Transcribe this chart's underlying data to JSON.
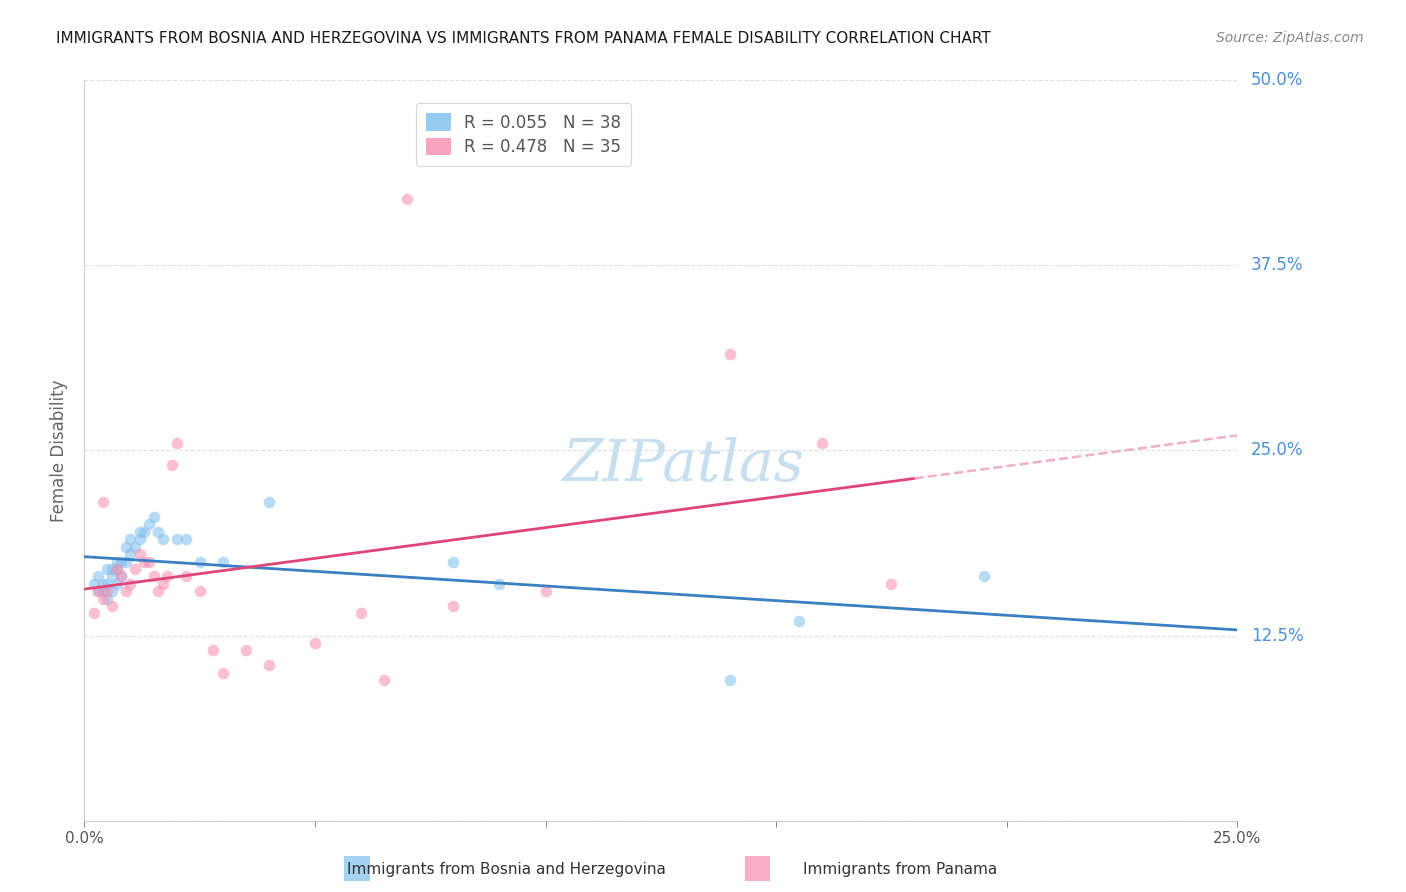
{
  "title": "IMMIGRANTS FROM BOSNIA AND HERZEGOVINA VS IMMIGRANTS FROM PANAMA FEMALE DISABILITY CORRELATION CHART",
  "source": "Source: ZipAtlas.com",
  "ylabel": "Female Disability",
  "xlim": [
    0.0,
    0.25
  ],
  "ylim": [
    0.0,
    0.5
  ],
  "x_ticks": [
    0.0,
    0.05,
    0.1,
    0.15,
    0.2,
    0.25
  ],
  "y_ticks": [
    0.0,
    0.125,
    0.25,
    0.375,
    0.5
  ],
  "legend_label1": "Immigrants from Bosnia and Herzegovina",
  "legend_label2": "Immigrants from Panama",
  "blue_R": 0.055,
  "blue_N": 38,
  "pink_R": 0.478,
  "pink_N": 35,
  "blue_scatter_x": [
    0.002,
    0.003,
    0.003,
    0.004,
    0.004,
    0.005,
    0.005,
    0.005,
    0.006,
    0.006,
    0.006,
    0.007,
    0.007,
    0.007,
    0.008,
    0.008,
    0.009,
    0.009,
    0.01,
    0.01,
    0.011,
    0.012,
    0.012,
    0.013,
    0.014,
    0.015,
    0.016,
    0.017,
    0.02,
    0.022,
    0.025,
    0.03,
    0.04,
    0.08,
    0.09,
    0.14,
    0.155,
    0.195
  ],
  "blue_scatter_y": [
    0.16,
    0.155,
    0.165,
    0.155,
    0.16,
    0.15,
    0.16,
    0.17,
    0.155,
    0.165,
    0.17,
    0.16,
    0.17,
    0.175,
    0.165,
    0.175,
    0.175,
    0.185,
    0.18,
    0.19,
    0.185,
    0.19,
    0.195,
    0.195,
    0.2,
    0.205,
    0.195,
    0.19,
    0.19,
    0.19,
    0.175,
    0.175,
    0.215,
    0.175,
    0.16,
    0.095,
    0.135,
    0.165
  ],
  "pink_scatter_x": [
    0.002,
    0.003,
    0.004,
    0.004,
    0.005,
    0.006,
    0.007,
    0.008,
    0.009,
    0.01,
    0.011,
    0.012,
    0.013,
    0.014,
    0.015,
    0.016,
    0.017,
    0.018,
    0.019,
    0.02,
    0.022,
    0.025,
    0.028,
    0.03,
    0.035,
    0.04,
    0.05,
    0.06,
    0.065,
    0.07,
    0.08,
    0.1,
    0.14,
    0.16,
    0.175
  ],
  "pink_scatter_y": [
    0.14,
    0.155,
    0.15,
    0.215,
    0.155,
    0.145,
    0.17,
    0.165,
    0.155,
    0.16,
    0.17,
    0.18,
    0.175,
    0.175,
    0.165,
    0.155,
    0.16,
    0.165,
    0.24,
    0.255,
    0.165,
    0.155,
    0.115,
    0.1,
    0.115,
    0.105,
    0.12,
    0.14,
    0.095,
    0.42,
    0.145,
    0.155,
    0.315,
    0.255,
    0.16
  ],
  "background_color": "#ffffff",
  "grid_color": "#e0e0e0",
  "scatter_size": 70,
  "scatter_alpha": 0.55,
  "blue_color": "#7fbfed",
  "pink_color": "#f78cb0",
  "blue_line_color": "#3a7fc1",
  "pink_line_color": "#e0457a",
  "dashed_line_color": "#f0b0c0",
  "watermark_color": "#c8dff0",
  "title_fontsize": 11,
  "legend_fontsize": 12,
  "axis_tick_color": "#4a90d9",
  "ylabel_color": "#666666",
  "source_color": "#888888"
}
